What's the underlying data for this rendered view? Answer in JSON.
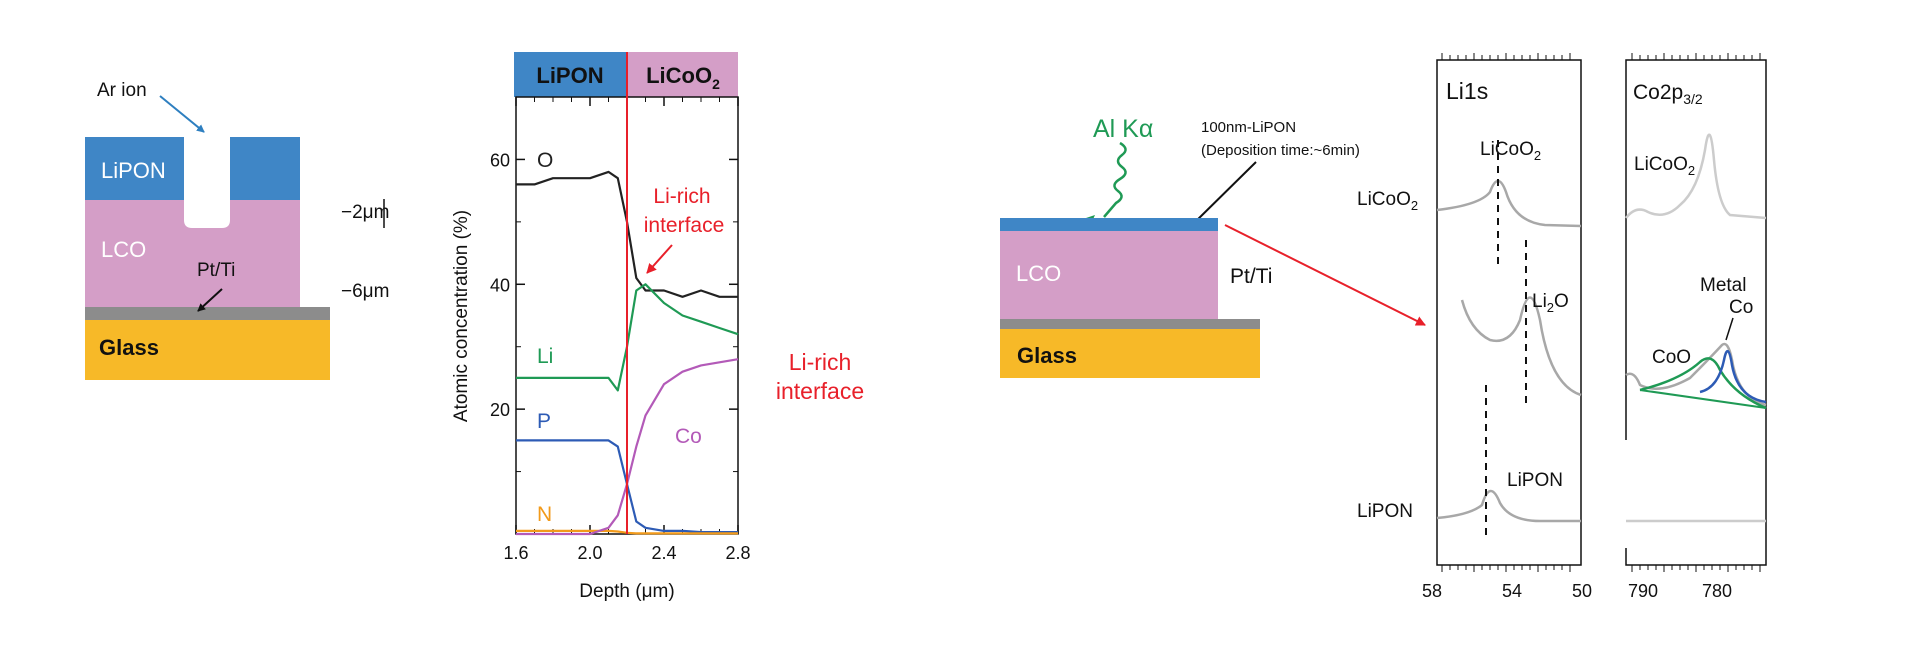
{
  "colors": {
    "lipon": "#3f86c6",
    "lco": "#d49ec7",
    "pt_ti": "#8c8c8c",
    "glass": "#f7b928",
    "red": "#e8202a",
    "green": "#1f9a55",
    "black": "#222222",
    "blue": "#2d5bb5",
    "purple": "#b35ab8",
    "orange": "#f29a1a",
    "gray": "#a8a8a8",
    "lightgray": "#cccccc"
  },
  "panel1": {
    "ar_ion": "Ar ion",
    "lipon": "LiPON",
    "lco": "LCO",
    "pt_ti": "Pt/Ti",
    "glass": "Glass",
    "depth_2": "−2μm",
    "depth_6": "−6μm"
  },
  "panel2": {
    "header_left": "LiPON",
    "header_right_main": "LiCoO",
    "header_right_sub": "2",
    "interface_label_line1": "Li-rich",
    "interface_label_line2": "interface",
    "side_label_line1": "Li-rich",
    "side_label_line2": "interface"
  },
  "chart_data": {
    "type": "line",
    "xlabel": "Depth (μm)",
    "ylabel": "Atomic concentration (%)",
    "xlim": [
      1.6,
      2.8
    ],
    "ylim": [
      0,
      70
    ],
    "xticks": [
      "1.6",
      "2.0",
      "2.4",
      "2.8"
    ],
    "yticks": [
      "20",
      "40",
      "60"
    ],
    "interface_depth": 2.2,
    "series": [
      {
        "name": "O",
        "color": "#222222",
        "x": [
          1.6,
          1.7,
          1.8,
          1.9,
          2.0,
          2.1,
          2.15,
          2.2,
          2.25,
          2.3,
          2.4,
          2.5,
          2.6,
          2.7,
          2.8
        ],
        "y": [
          56,
          56,
          57,
          57,
          57,
          58,
          57,
          50,
          41,
          39,
          39,
          38,
          39,
          38,
          38
        ]
      },
      {
        "name": "Li",
        "color": "#1f9a55",
        "x": [
          1.6,
          1.7,
          1.8,
          1.9,
          2.0,
          2.1,
          2.15,
          2.2,
          2.25,
          2.3,
          2.4,
          2.5,
          2.6,
          2.7,
          2.8
        ],
        "y": [
          25,
          25,
          25,
          25,
          25,
          25,
          23,
          30,
          39,
          40,
          37,
          35,
          34,
          33,
          32
        ]
      },
      {
        "name": "P",
        "color": "#2d5bb5",
        "x": [
          1.6,
          1.7,
          1.8,
          1.9,
          2.0,
          2.1,
          2.15,
          2.2,
          2.25,
          2.3,
          2.4,
          2.5,
          2.6,
          2.7,
          2.8
        ],
        "y": [
          15,
          15,
          15,
          15,
          15,
          15,
          14,
          8,
          2,
          1,
          0.5,
          0.5,
          0.3,
          0.3,
          0.3
        ]
      },
      {
        "name": "N",
        "color": "#f29a1a",
        "x": [
          1.6,
          1.7,
          1.8,
          1.9,
          2.0,
          2.1,
          2.15,
          2.2,
          2.25,
          2.3,
          2.4,
          2.5,
          2.6,
          2.7,
          2.8
        ],
        "y": [
          0.5,
          0.5,
          0.5,
          0.5,
          0.5,
          0.5,
          0.4,
          0.2,
          0.1,
          0.1,
          0.1,
          0.1,
          0.1,
          0.1,
          0.1
        ]
      },
      {
        "name": "Co",
        "color": "#b35ab8",
        "x": [
          1.6,
          1.7,
          1.8,
          1.9,
          2.0,
          2.1,
          2.15,
          2.2,
          2.25,
          2.3,
          2.4,
          2.5,
          2.6,
          2.7,
          2.8
        ],
        "y": [
          0,
          0,
          0,
          0,
          0,
          1,
          3,
          8,
          14,
          19,
          24,
          26,
          27,
          27.5,
          28
        ]
      }
    ],
    "series_labels": [
      {
        "name": "O",
        "text": "O"
      },
      {
        "name": "Li",
        "text": "Li"
      },
      {
        "name": "P",
        "text": "P"
      },
      {
        "name": "N",
        "text": "N"
      },
      {
        "name": "Co",
        "text": "Co"
      }
    ]
  },
  "panel3": {
    "al_ka": "Al Kα",
    "film_line1": "100nm-LiPON",
    "film_line2": "(Deposition time:~6min)",
    "lco": "LCO",
    "pt_ti": "Pt/Ti",
    "glass": "Glass"
  },
  "panel4": {
    "li1s_title": "Li1s",
    "row_labels": {
      "licoo2_main": "LiCoO",
      "licoo2_sub": "2",
      "lipon": "LiPON"
    },
    "peak_labels": {
      "licoo2_main": "LiCoO",
      "licoo2_sub": "2",
      "li2o_main": "Li",
      "li2o_sub": "2",
      "li2o_tail": "O",
      "lipon": "LiPON"
    },
    "x_ticks": [
      "58",
      "54",
      "50"
    ]
  },
  "panel5": {
    "title_main": "Co2p",
    "title_sub": "3/2",
    "licoo2_main": "LiCoO",
    "licoo2_sub": "2",
    "metal_line1": "Metal",
    "metal_line2": "Co",
    "coo": "CoO",
    "x_ticks": [
      "790",
      "780"
    ]
  }
}
